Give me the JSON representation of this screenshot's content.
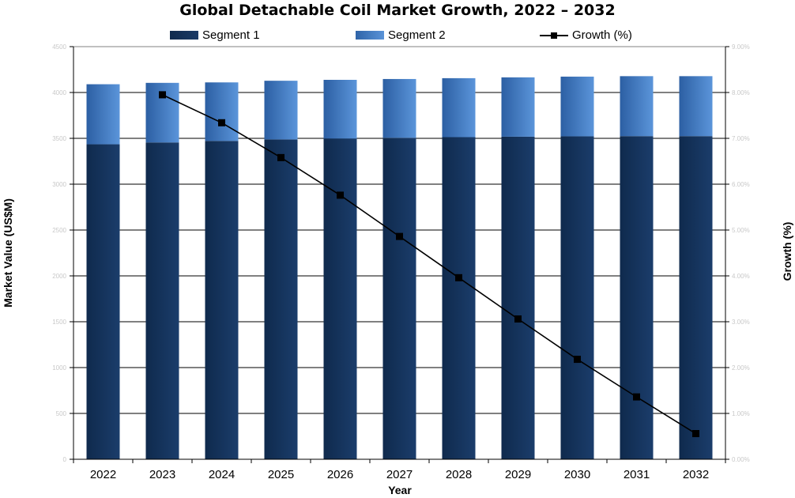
{
  "chart_data": {
    "type": "bar",
    "title": "Global Detachable Coil Market Growth, 2022 – 2032",
    "xlabel": "Year",
    "ylabel": "Market Value (US$M)",
    "y2label": "Growth (%)",
    "categories": [
      "2022",
      "2023",
      "2024",
      "2025",
      "2026",
      "2027",
      "2028",
      "2029",
      "2030",
      "2031",
      "2032"
    ],
    "stacked": true,
    "ylim": [
      0,
      4500
    ],
    "y_ticks": [
      "0",
      "500",
      "1000",
      "1500",
      "2000",
      "2500",
      "3000",
      "3500",
      "4000",
      "4500"
    ],
    "y2lim": [
      0,
      9
    ],
    "y2_ticks": [
      "0.00%",
      "1.00%",
      "2.00%",
      "3.00%",
      "4.00%",
      "5.00%",
      "6.00%",
      "7.00%",
      "8.00%",
      "9.00%"
    ],
    "series": [
      {
        "name": "Segment 1",
        "type": "bar",
        "values": [
          3435,
          3455,
          3472,
          3488,
          3497,
          3506,
          3513,
          3518,
          3522,
          3524,
          3524
        ],
        "color": "#17345e"
      },
      {
        "name": "Segment 2",
        "type": "bar",
        "values": [
          655,
          650,
          638,
          640,
          641,
          641,
          643,
          647,
          651,
          654,
          654
        ],
        "color": "#4a80c8"
      },
      {
        "name": "Growth (%)",
        "type": "line",
        "axis": "right",
        "values": [
          null,
          7.95,
          7.34,
          6.58,
          5.76,
          4.86,
          3.96,
          3.06,
          2.18,
          1.36,
          0.56
        ],
        "color": "#000000"
      }
    ],
    "legend": "top",
    "grid": true
  }
}
